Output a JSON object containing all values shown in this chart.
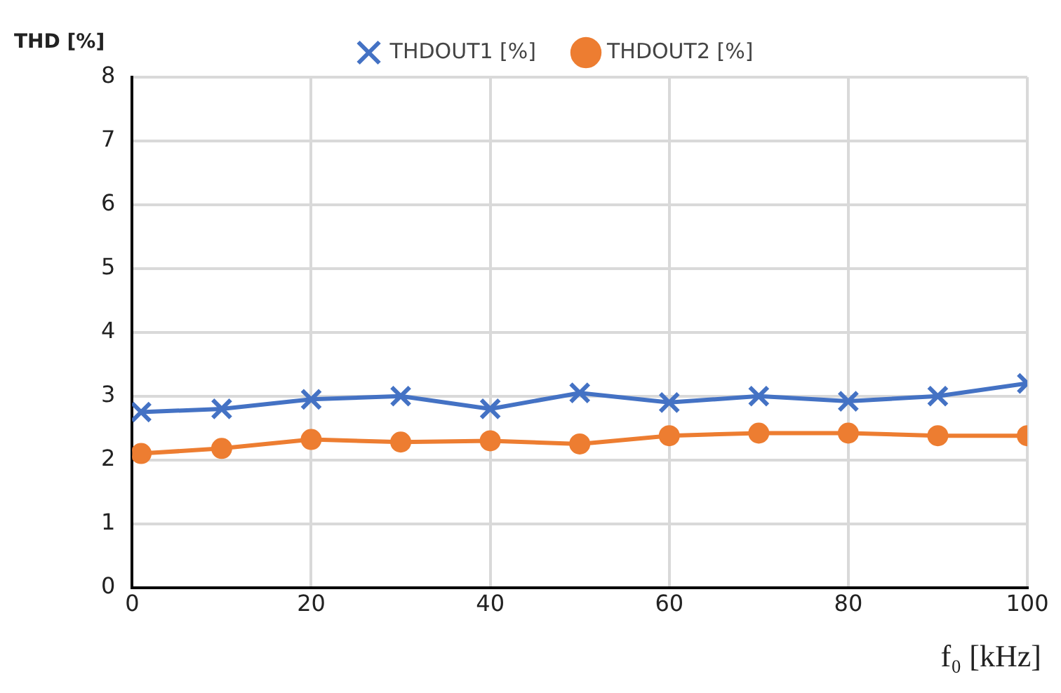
{
  "chart_data": {
    "type": "line",
    "xlabel": "f₀ [kHz]",
    "ylabel": "THD [%]",
    "x": [
      1,
      10,
      20,
      30,
      40,
      50,
      60,
      70,
      80,
      90,
      100
    ],
    "series": [
      {
        "name": "THDOUT1 [%]",
        "color": "#4472c4",
        "marker": "cross",
        "values": [
          2.75,
          2.8,
          2.95,
          3.0,
          2.8,
          3.05,
          2.9,
          3.0,
          2.92,
          3.0,
          3.2
        ]
      },
      {
        "name": "THDOUT2 [%]",
        "color": "#ed7d31",
        "marker": "circle",
        "values": [
          2.1,
          2.18,
          2.32,
          2.28,
          2.3,
          2.25,
          2.38,
          2.42,
          2.42,
          2.38,
          2.38
        ]
      }
    ],
    "xlim": [
      0,
      100
    ],
    "xticks": [
      0,
      20,
      40,
      60,
      80,
      100
    ],
    "ylim": [
      0,
      8
    ],
    "yticks": [
      0,
      1,
      2,
      3,
      4,
      5,
      6,
      7,
      8
    ],
    "grid": true,
    "legend": "top"
  }
}
